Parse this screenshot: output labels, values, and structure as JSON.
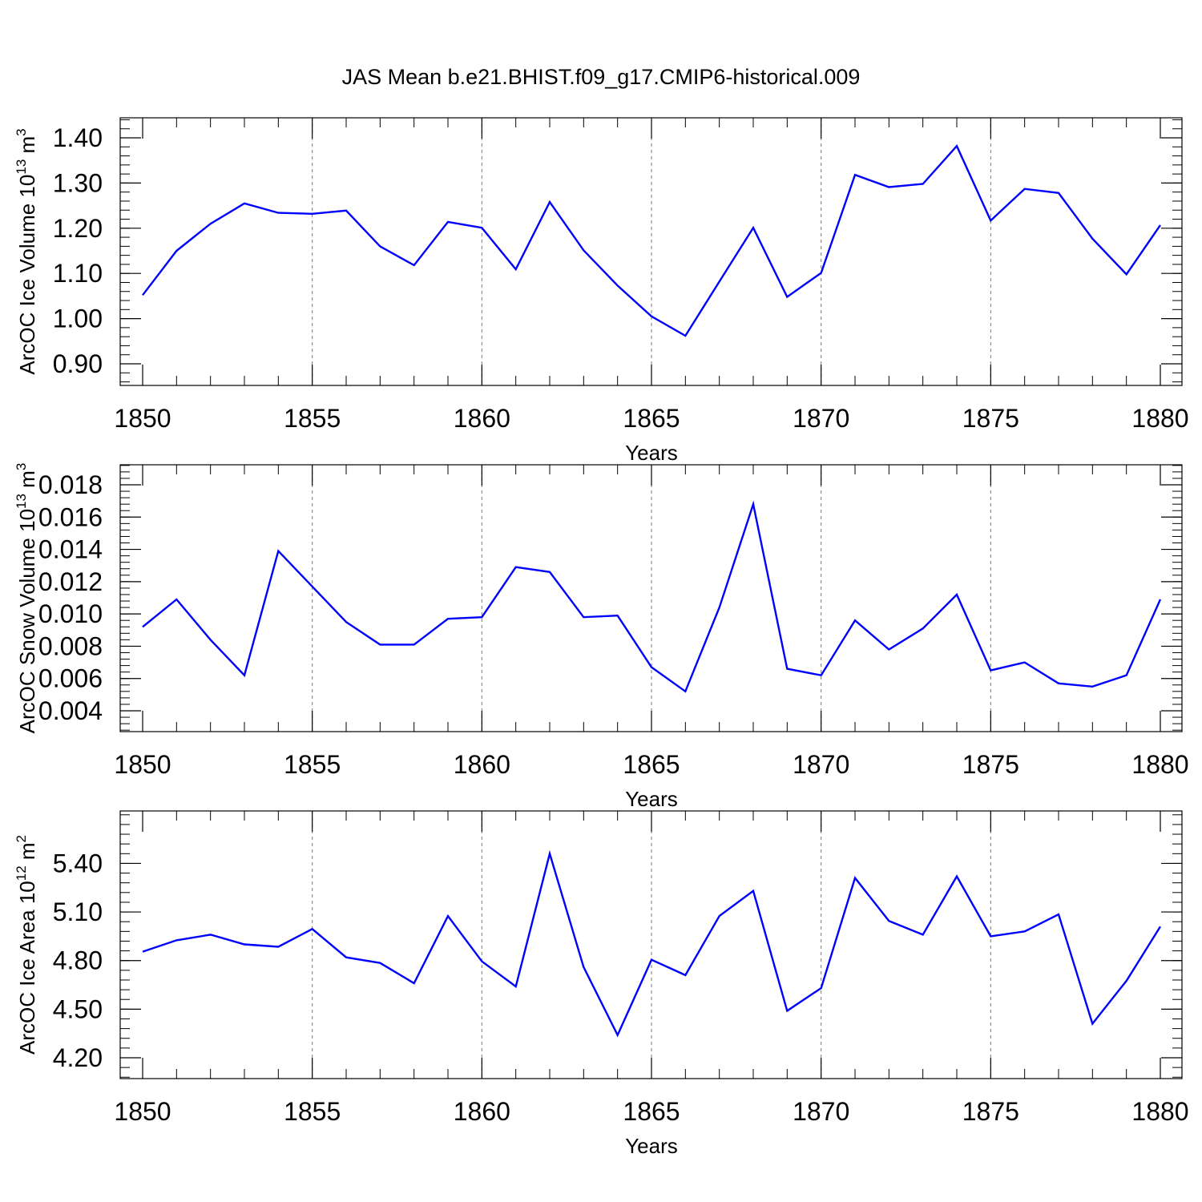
{
  "title": "JAS Mean b.e21.BHIST.f09_g17.CMIP6-historical.009",
  "line_color": "#0000ff",
  "chart_data": [
    {
      "type": "line",
      "ylabel": {
        "pre": "ArcOC Ice Volume 10",
        "sup": "13",
        "mid": " m",
        "sup2": "3"
      },
      "xlabel": "Years",
      "xlim": [
        1850,
        1880
      ],
      "ylim": [
        0.9,
        1.4
      ],
      "xticks": [
        1850,
        1855,
        1860,
        1865,
        1870,
        1875,
        1880
      ],
      "xtick_labels": [
        "1850",
        "1855",
        "1860",
        "1865",
        "1870",
        "1875",
        "1880"
      ],
      "yticks": [
        0.9,
        1.0,
        1.1,
        1.2,
        1.3,
        1.4
      ],
      "ytick_labels": [
        "0.90",
        "1.00",
        "1.10",
        "1.20",
        "1.30",
        "1.40"
      ],
      "y_minor_step": 0.02,
      "grid": "vertical-dashed",
      "x": [
        1850,
        1851,
        1852,
        1853,
        1854,
        1855,
        1856,
        1857,
        1858,
        1859,
        1860,
        1861,
        1862,
        1863,
        1864,
        1865,
        1866,
        1867,
        1868,
        1869,
        1870,
        1871,
        1872,
        1873,
        1874,
        1875,
        1876,
        1877,
        1878,
        1879,
        1880
      ],
      "y": [
        1.052,
        1.15,
        1.21,
        1.255,
        1.234,
        1.232,
        1.239,
        1.16,
        1.118,
        1.214,
        1.201,
        1.109,
        1.258,
        1.151,
        1.073,
        1.005,
        0.962,
        1.082,
        1.201,
        1.048,
        1.101,
        1.318,
        1.291,
        1.298,
        1.382,
        1.217,
        1.287,
        1.278,
        1.177,
        1.098,
        1.207
      ]
    },
    {
      "type": "line",
      "ylabel": {
        "pre": "ArcOC Snow Volume 10",
        "sup": "13",
        "mid": " m",
        "sup2": "3"
      },
      "xlabel": "Years",
      "xlim": [
        1850,
        1880
      ],
      "ylim": [
        0.004,
        0.018
      ],
      "xticks": [
        1850,
        1855,
        1860,
        1865,
        1870,
        1875,
        1880
      ],
      "xtick_labels": [
        "1850",
        "1855",
        "1860",
        "1865",
        "1870",
        "1875",
        "1880"
      ],
      "yticks": [
        0.004,
        0.006,
        0.008,
        0.01,
        0.012,
        0.014,
        0.016,
        0.018
      ],
      "ytick_labels": [
        "0.004",
        "0.006",
        "0.008",
        "0.010",
        "0.012",
        "0.014",
        "0.016",
        "0.018"
      ],
      "y_minor_step": 0.0004,
      "grid": "vertical-dashed",
      "x": [
        1850,
        1851,
        1852,
        1853,
        1854,
        1855,
        1856,
        1857,
        1858,
        1859,
        1860,
        1861,
        1862,
        1863,
        1864,
        1865,
        1866,
        1867,
        1868,
        1869,
        1870,
        1871,
        1872,
        1873,
        1874,
        1875,
        1876,
        1877,
        1878,
        1879,
        1880
      ],
      "y": [
        0.0092,
        0.0109,
        0.0084,
        0.0062,
        0.0139,
        0.0117,
        0.0095,
        0.0081,
        0.0081,
        0.0097,
        0.0098,
        0.0129,
        0.0126,
        0.0098,
        0.0099,
        0.0067,
        0.0052,
        0.0104,
        0.0168,
        0.0066,
        0.0062,
        0.0096,
        0.0078,
        0.0091,
        0.0112,
        0.0065,
        0.007,
        0.0057,
        0.0055,
        0.0062,
        0.0109
      ]
    },
    {
      "type": "line",
      "ylabel": {
        "pre": "ArcOC Ice Area 10",
        "sup": "12",
        "mid": " m",
        "sup2": "2"
      },
      "xlabel": "Years",
      "xlim": [
        1850,
        1880
      ],
      "ylim": [
        4.2,
        5.6
      ],
      "xticks": [
        1850,
        1855,
        1860,
        1865,
        1870,
        1875,
        1880
      ],
      "xtick_labels": [
        "1850",
        "1855",
        "1860",
        "1865",
        "1870",
        "1875",
        "1880"
      ],
      "yticks": [
        4.2,
        4.5,
        4.8,
        5.1,
        5.4
      ],
      "ytick_labels": [
        "4.20",
        "4.50",
        "4.80",
        "5.10",
        "5.40"
      ],
      "y_minor_step": 0.06,
      "grid": "vertical-dashed",
      "x": [
        1850,
        1851,
        1852,
        1853,
        1854,
        1855,
        1856,
        1857,
        1858,
        1859,
        1860,
        1861,
        1862,
        1863,
        1864,
        1865,
        1866,
        1867,
        1868,
        1869,
        1870,
        1871,
        1872,
        1873,
        1874,
        1875,
        1876,
        1877,
        1878,
        1879,
        1880
      ],
      "y": [
        4.855,
        4.925,
        4.96,
        4.9,
        4.885,
        4.995,
        4.82,
        4.785,
        4.66,
        5.075,
        4.795,
        4.64,
        5.46,
        4.76,
        4.34,
        4.805,
        4.71,
        5.075,
        5.23,
        4.49,
        4.63,
        5.31,
        5.045,
        4.96,
        5.32,
        4.95,
        4.98,
        5.085,
        4.41,
        4.675,
        5.01
      ]
    }
  ]
}
